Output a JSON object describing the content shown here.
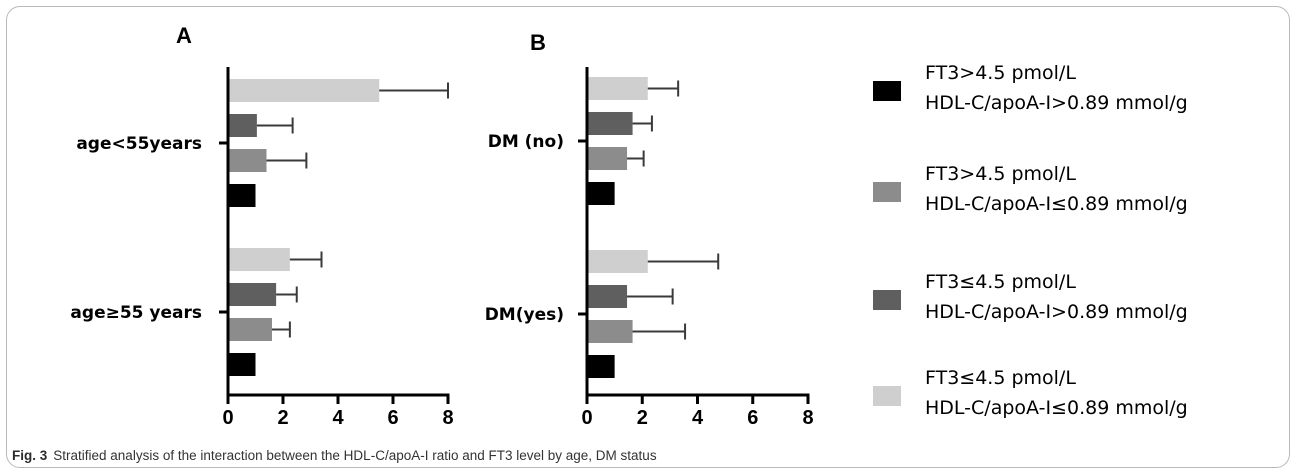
{
  "caption": {
    "label": "Fig. 3",
    "text": "Stratified analysis of the interaction between the HDL-C/apoA-I ratio and FT3 level by age, DM status"
  },
  "legend": {
    "placement": "right",
    "items": [
      {
        "line1": "FT3>4.5 pmol/L",
        "line2": "HDL-C/apoA-I>0.89 mmol/g",
        "color": "#000000"
      },
      {
        "line1": "FT3>4.5 pmol/L",
        "line2": "HDL-C/apoA-I≤0.89 mmol/g",
        "color": "#8c8c8c"
      },
      {
        "line1": "FT3≤4.5 pmol/L",
        "line2": "HDL-C/apoA-I>0.89 mmol/g",
        "color": "#5f5f5f"
      },
      {
        "line1": "FT3≤4.5 pmol/L",
        "line2": "HDL-C/apoA-I≤0.89 mmol/g",
        "color": "#cfcfcf"
      }
    ]
  },
  "chart_data": [
    {
      "type": "bar",
      "orientation": "horizontal",
      "panel": "A",
      "categories": [
        "age<55years",
        "age≥55 years"
      ],
      "xlim": [
        0,
        8
      ],
      "xticks": [
        0,
        2,
        4,
        6,
        8
      ],
      "series": [
        {
          "color": "#cfcfcf",
          "values": [
            5.5,
            2.25
          ],
          "error_upper": [
            8.0,
            3.4
          ]
        },
        {
          "color": "#5f5f5f",
          "values": [
            1.05,
            1.75
          ],
          "error_upper": [
            2.35,
            2.5
          ]
        },
        {
          "color": "#8c8c8c",
          "values": [
            1.4,
            1.6
          ],
          "error_upper": [
            2.85,
            2.25
          ]
        },
        {
          "color": "#000000",
          "values": [
            1.0,
            1.0
          ],
          "error_upper": [
            null,
            null
          ]
        }
      ]
    },
    {
      "type": "bar",
      "orientation": "horizontal",
      "panel": "B",
      "categories": [
        "DM (no)",
        "DM(yes)"
      ],
      "xlim": [
        0,
        8
      ],
      "xticks": [
        0,
        2,
        4,
        6,
        8
      ],
      "series": [
        {
          "color": "#cfcfcf",
          "values": [
            2.2,
            2.2
          ],
          "error_upper": [
            3.3,
            4.75
          ]
        },
        {
          "color": "#5f5f5f",
          "values": [
            1.65,
            1.45
          ],
          "error_upper": [
            2.35,
            3.1
          ]
        },
        {
          "color": "#8c8c8c",
          "values": [
            1.45,
            1.65
          ],
          "error_upper": [
            2.05,
            3.55
          ]
        },
        {
          "color": "#000000",
          "values": [
            1.0,
            1.0
          ],
          "error_upper": [
            null,
            null
          ]
        }
      ]
    }
  ]
}
